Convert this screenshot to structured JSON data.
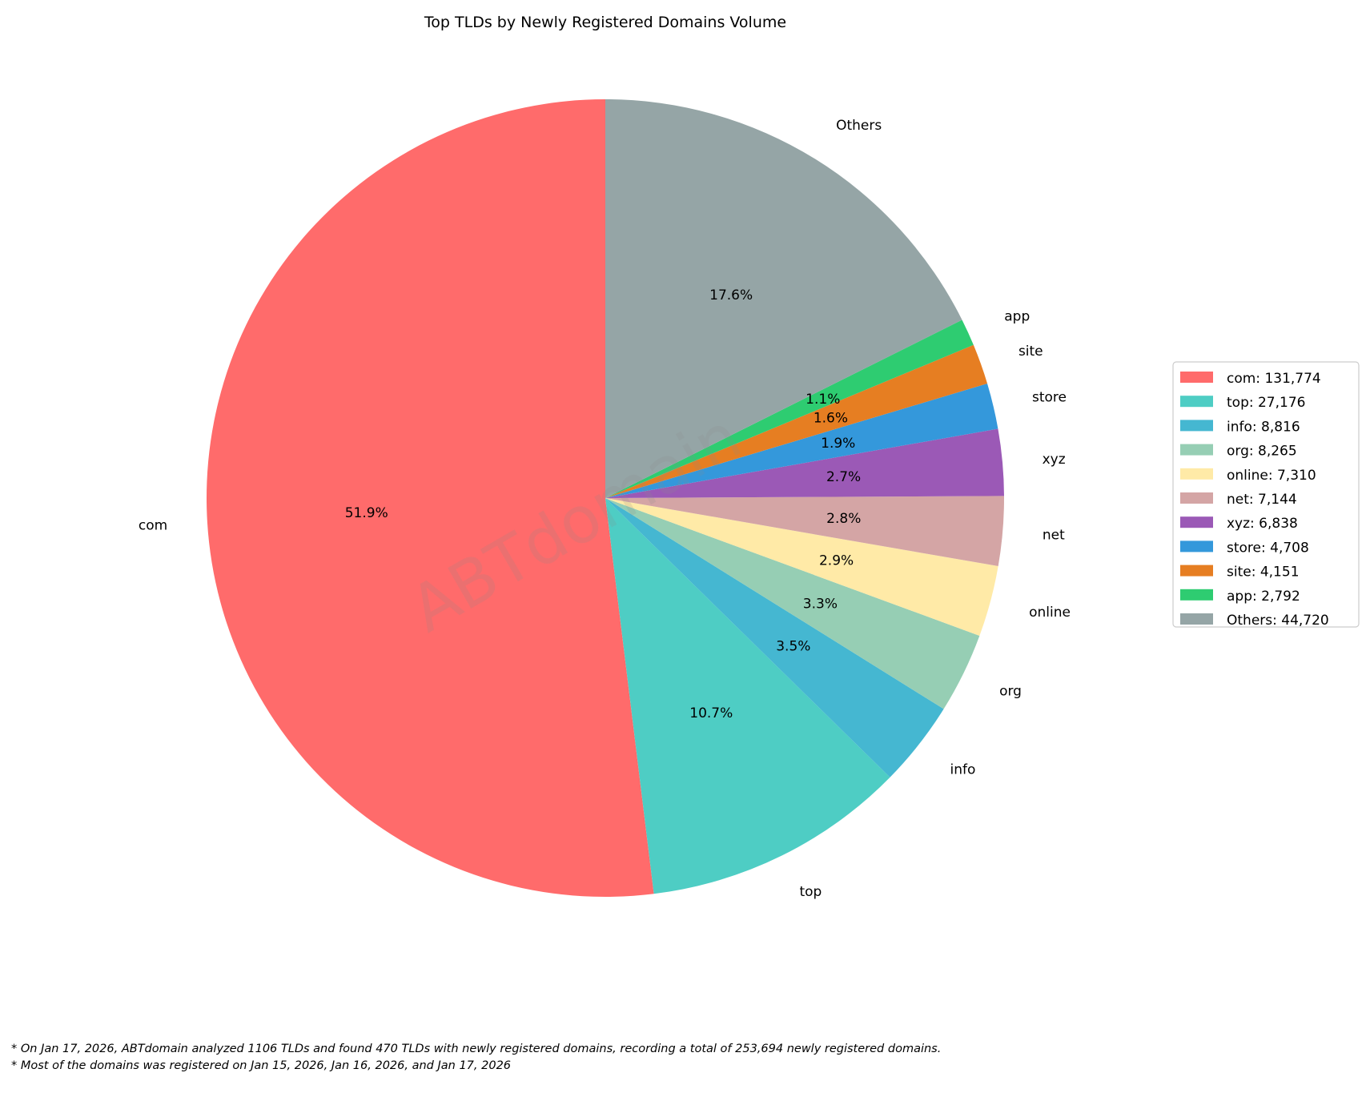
{
  "chart_data": {
    "type": "pie",
    "title": "Top TLDs by Newly Registered Domains Volume",
    "categories": [
      "com",
      "top",
      "info",
      "org",
      "online",
      "net",
      "xyz",
      "store",
      "site",
      "app",
      "Others"
    ],
    "values": [
      131774,
      27176,
      8816,
      8265,
      7310,
      7144,
      6838,
      4708,
      4151,
      2792,
      44720
    ],
    "percent_labels": [
      "51.9%",
      "10.7%",
      "3.5%",
      "3.3%",
      "2.9%",
      "2.8%",
      "2.7%",
      "1.9%",
      "1.6%",
      "1.1%",
      "17.6%"
    ],
    "legend_labels": [
      "com: 131,774",
      "top: 27,176",
      "info: 8,816",
      "org: 8,265",
      "online: 7,310",
      "net: 7,144",
      "xyz: 6,838",
      "store: 4,708",
      "site: 4,151",
      "app: 2,792",
      "Others: 44,720"
    ],
    "colors": [
      "#ff6b6b",
      "#4ecdc4",
      "#45b7d1",
      "#96ceb4",
      "#ffeaa7",
      "#d4a5a5",
      "#9b59b6",
      "#3498db",
      "#e67e22",
      "#2ecc71",
      "#95a5a6"
    ],
    "start_angle": 90,
    "direction": "counterclockwise",
    "legend_position": "right",
    "watermark": "ABTdomain"
  },
  "footnotes": [
    "* On Jan 17, 2026, ABTdomain analyzed 1106 TLDs and found 470 TLDs with newly registered domains, recording a total of 253,694 newly registered domains.",
    "* Most of the domains was registered on Jan 15, 2026, Jan 16, 2026, and Jan 17, 2026"
  ]
}
